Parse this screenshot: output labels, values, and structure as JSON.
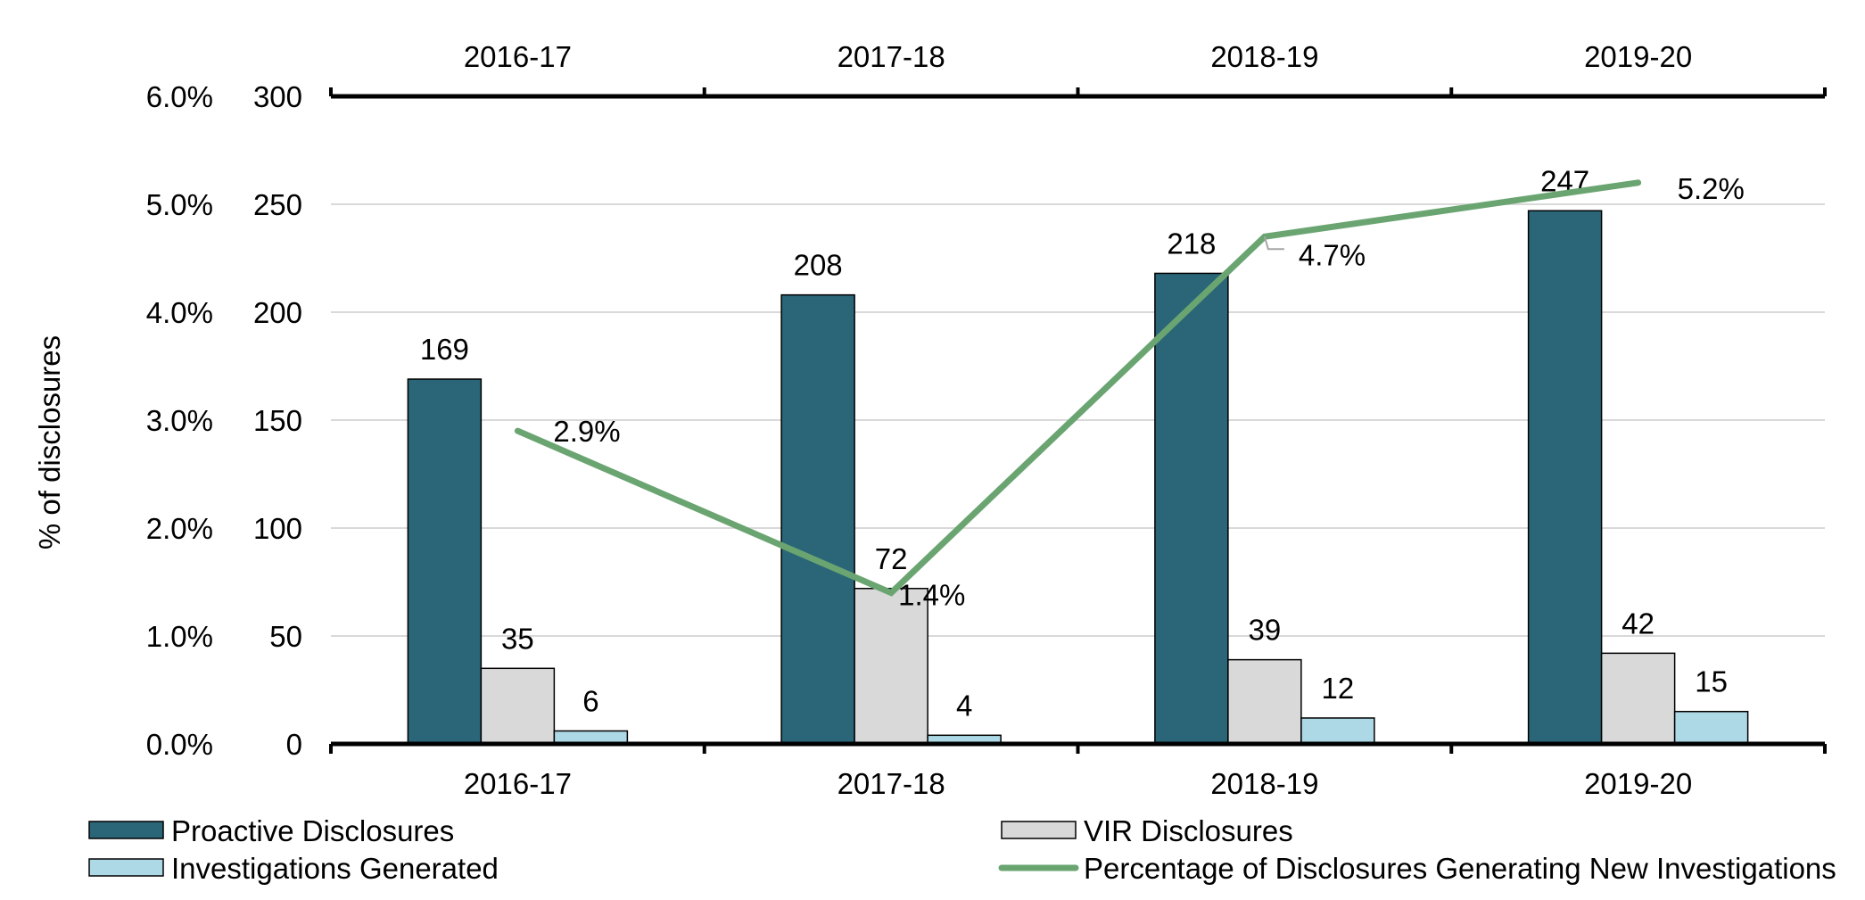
{
  "chart_data": {
    "type": "bar",
    "title": "",
    "categories": [
      "2016-17",
      "2017-18",
      "2018-19",
      "2019-20"
    ],
    "series": [
      {
        "name": "Proactive Disclosures",
        "kind": "bar",
        "axis": "left-count",
        "color": "#2a6677",
        "values": [
          169,
          208,
          218,
          247
        ]
      },
      {
        "name": "VIR Disclosures",
        "kind": "bar",
        "axis": "left-count",
        "color": "#d9d9d9",
        "values": [
          35,
          72,
          39,
          42
        ]
      },
      {
        "name": "Investigations Generated",
        "kind": "bar",
        "axis": "left-count",
        "color": "#add8e6",
        "values": [
          6,
          4,
          12,
          15
        ]
      },
      {
        "name": "Percentage of Disclosures Generating New Investigations",
        "kind": "line",
        "axis": "left-percent",
        "color": "#6aa571",
        "values": [
          2.9,
          1.4,
          4.7,
          5.2
        ],
        "labels": [
          "2.9%",
          "1.4%",
          "4.7%",
          "5.2%"
        ]
      }
    ],
    "ylabel": "% of disclosures",
    "ylim_count": [
      0,
      300
    ],
    "ylim_percent": [
      0,
      6
    ],
    "yticks_count": [
      "0",
      "50",
      "100",
      "150",
      "200",
      "250",
      "300"
    ],
    "yticks_percent": [
      "0.0%",
      "1.0%",
      "2.0%",
      "3.0%",
      "4.0%",
      "5.0%",
      "6.0%"
    ],
    "grid": true,
    "legend": "bottom",
    "legend_order": [
      0,
      1,
      2,
      3
    ]
  }
}
